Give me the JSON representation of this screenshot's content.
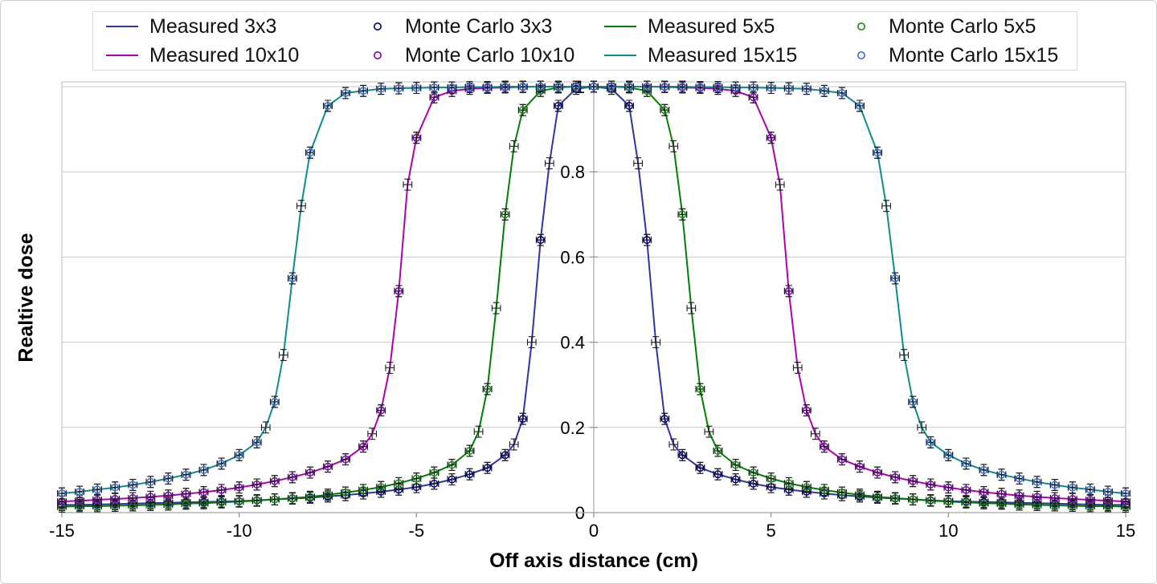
{
  "chart_data": {
    "type": "line",
    "title": "",
    "xlabel": "Off axis distance (cm)",
    "ylabel": "Realtive dose",
    "xlim": [
      -15,
      15
    ],
    "ylim": [
      0,
      1.012
    ],
    "x_ticks": [
      "-15",
      "-10",
      "-5",
      "0",
      "5",
      "10",
      "15"
    ],
    "y_ticks": [
      "0",
      "0.2",
      "0.4",
      "0.6",
      "0.8",
      "1"
    ],
    "grid": "horizontal-major",
    "legend_position": "top",
    "axis_color": "#ababab",
    "gridline_color": "#c9c9c9",
    "error_bar_color": "#1c1c1c",
    "error_bars": {
      "y_abs": 0.013,
      "x_abs_cm": 0.12
    },
    "series": [
      {
        "name": "Measured 3x3",
        "style": "line",
        "color": "#3333a8",
        "symmetric": true,
        "x_half": [
          0,
          0.5,
          1,
          1.25,
          1.5,
          1.75,
          2,
          2.25,
          2.5,
          3,
          3.5,
          4,
          4.5,
          5,
          5.5,
          6,
          6.5,
          7,
          7.5,
          8,
          8.5,
          9,
          9.5,
          10,
          10.5,
          11,
          11.5,
          12,
          12.5,
          13,
          13.5,
          14,
          14.5,
          15
        ],
        "y_half": [
          1,
          0.995,
          0.955,
          0.82,
          0.64,
          0.4,
          0.22,
          0.16,
          0.135,
          0.105,
          0.09,
          0.078,
          0.068,
          0.06,
          0.054,
          0.049,
          0.045,
          0.041,
          0.038,
          0.035,
          0.033,
          0.031,
          0.029,
          0.027,
          0.026,
          0.025,
          0.024,
          0.023,
          0.022,
          0.021,
          0.02,
          0.019,
          0.018,
          0.018
        ]
      },
      {
        "name": "Monte Carlo 3x3",
        "style": "scatter",
        "color": "#00008b",
        "symmetric": true,
        "x_half": [
          0,
          0.5,
          1,
          1.5,
          2,
          2.5,
          3,
          3.5,
          4,
          4.5,
          5,
          5.5,
          6,
          6.5,
          7,
          7.5,
          8,
          8.5,
          9,
          9.5,
          10,
          10.5,
          11,
          11.5,
          12,
          12.5,
          13,
          13.5,
          14,
          14.5,
          15
        ],
        "y_half": [
          1,
          0.995,
          0.955,
          0.64,
          0.22,
          0.135,
          0.105,
          0.09,
          0.078,
          0.068,
          0.06,
          0.054,
          0.049,
          0.045,
          0.041,
          0.038,
          0.035,
          0.033,
          0.031,
          0.029,
          0.027,
          0.026,
          0.025,
          0.024,
          0.023,
          0.022,
          0.021,
          0.02,
          0.019,
          0.018,
          0.018
        ]
      },
      {
        "name": "Measured 5x5",
        "style": "line",
        "color": "#008000",
        "symmetric": true,
        "x_half": [
          0,
          0.5,
          1,
          1.5,
          2,
          2.25,
          2.5,
          2.75,
          3,
          3.25,
          3.5,
          4,
          4.5,
          5,
          5.5,
          6,
          6.5,
          7,
          7.5,
          8,
          8.5,
          9,
          9.5,
          10,
          10.5,
          11,
          11.5,
          12,
          12.5,
          13,
          13.5,
          14,
          14.5,
          15
        ],
        "y_half": [
          1,
          1,
          0.998,
          0.99,
          0.945,
          0.86,
          0.7,
          0.48,
          0.29,
          0.19,
          0.145,
          0.112,
          0.094,
          0.08,
          0.069,
          0.06,
          0.053,
          0.047,
          0.042,
          0.037,
          0.034,
          0.031,
          0.028,
          0.026,
          0.024,
          0.022,
          0.021,
          0.019,
          0.018,
          0.017,
          0.016,
          0.015,
          0.015,
          0.014
        ]
      },
      {
        "name": "Monte Carlo 5x5",
        "style": "scatter",
        "color": "#1a8c1a",
        "symmetric": true,
        "x_half": [
          0,
          0.5,
          1,
          1.5,
          2,
          2.5,
          3,
          3.5,
          4,
          4.5,
          5,
          5.5,
          6,
          6.5,
          7,
          7.5,
          8,
          8.5,
          9,
          9.5,
          10,
          10.5,
          11,
          11.5,
          12,
          12.5,
          13,
          13.5,
          14,
          14.5,
          15
        ],
        "y_half": [
          1,
          1,
          0.998,
          0.99,
          0.945,
          0.7,
          0.29,
          0.145,
          0.112,
          0.094,
          0.08,
          0.069,
          0.06,
          0.053,
          0.047,
          0.042,
          0.037,
          0.034,
          0.031,
          0.028,
          0.026,
          0.024,
          0.022,
          0.021,
          0.019,
          0.018,
          0.017,
          0.016,
          0.015,
          0.015,
          0.014
        ]
      },
      {
        "name": "Measured 10x10",
        "style": "line",
        "color": "#b000b0",
        "symmetric": true,
        "x_half": [
          0,
          0.5,
          1,
          1.5,
          2,
          2.5,
          3,
          3.5,
          4,
          4.5,
          5,
          5.25,
          5.5,
          5.75,
          6,
          6.25,
          6.5,
          7,
          7.5,
          8,
          8.5,
          9,
          9.5,
          10,
          10.5,
          11,
          11.5,
          12,
          12.5,
          13,
          13.5,
          14,
          14.5,
          15
        ],
        "y_half": [
          1,
          1,
          1,
          1,
          0.999,
          0.998,
          0.997,
          0.995,
          0.99,
          0.975,
          0.88,
          0.77,
          0.52,
          0.34,
          0.24,
          0.185,
          0.155,
          0.125,
          0.108,
          0.094,
          0.083,
          0.074,
          0.066,
          0.059,
          0.053,
          0.048,
          0.044,
          0.04,
          0.037,
          0.034,
          0.032,
          0.03,
          0.028,
          0.026
        ]
      },
      {
        "name": "Monte Carlo 10x10",
        "style": "scatter",
        "color": "#7f00bf",
        "symmetric": true,
        "x_half": [
          0,
          0.5,
          1,
          1.5,
          2,
          2.5,
          3,
          3.5,
          4,
          4.5,
          5,
          5.5,
          6,
          6.5,
          7,
          7.5,
          8,
          8.5,
          9,
          9.5,
          10,
          10.5,
          11,
          11.5,
          12,
          12.5,
          13,
          13.5,
          14,
          14.5,
          15
        ],
        "y_half": [
          1,
          1,
          1,
          1,
          0.999,
          0.998,
          0.997,
          0.995,
          0.99,
          0.975,
          0.88,
          0.52,
          0.24,
          0.155,
          0.125,
          0.108,
          0.094,
          0.083,
          0.074,
          0.066,
          0.059,
          0.053,
          0.048,
          0.044,
          0.04,
          0.037,
          0.034,
          0.032,
          0.03,
          0.028,
          0.026
        ]
      },
      {
        "name": "Measured 15x15",
        "style": "line",
        "color": "#0e8c8c",
        "symmetric": true,
        "x_half": [
          0,
          0.5,
          1,
          1.5,
          2,
          2.5,
          3,
          3.5,
          4,
          4.5,
          5,
          5.5,
          6,
          6.5,
          7,
          7.5,
          8,
          8.25,
          8.5,
          8.75,
          9,
          9.25,
          9.5,
          10,
          10.5,
          11,
          11.5,
          12,
          12.5,
          13,
          13.5,
          14,
          14.5,
          15
        ],
        "y_half": [
          1,
          1,
          1,
          1,
          1,
          1,
          0.999,
          0.999,
          0.998,
          0.998,
          0.997,
          0.996,
          0.995,
          0.99,
          0.985,
          0.955,
          0.845,
          0.72,
          0.55,
          0.37,
          0.26,
          0.2,
          0.165,
          0.135,
          0.115,
          0.1,
          0.089,
          0.08,
          0.072,
          0.065,
          0.059,
          0.054,
          0.049,
          0.045
        ]
      },
      {
        "name": "Monte Carlo 15x15",
        "style": "scatter",
        "color": "#3c6edc",
        "symmetric": true,
        "x_half": [
          0,
          0.5,
          1,
          1.5,
          2,
          2.5,
          3,
          3.5,
          4,
          4.5,
          5,
          5.5,
          6,
          6.5,
          7,
          7.5,
          8,
          8.5,
          9,
          9.5,
          10,
          10.5,
          11,
          11.5,
          12,
          12.5,
          13,
          13.5,
          14,
          14.5,
          15
        ],
        "y_half": [
          1,
          1,
          1,
          1,
          1,
          1,
          0.999,
          0.999,
          0.998,
          0.998,
          0.997,
          0.996,
          0.995,
          0.99,
          0.985,
          0.955,
          0.845,
          0.55,
          0.26,
          0.165,
          0.135,
          0.115,
          0.1,
          0.089,
          0.08,
          0.072,
          0.065,
          0.059,
          0.054,
          0.049,
          0.045
        ]
      }
    ]
  }
}
